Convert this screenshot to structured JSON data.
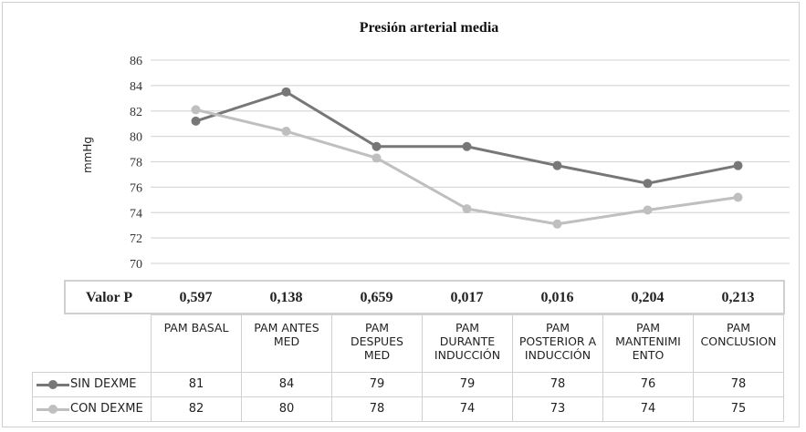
{
  "chart_data": {
    "type": "line",
    "title": "Presión arterial media",
    "ylabel": "mmHg",
    "ylim": [
      70,
      86
    ],
    "yticks": [
      70,
      72,
      74,
      76,
      78,
      80,
      82,
      84,
      86
    ],
    "grid": true,
    "categories": [
      "PAM BASAL",
      "PAM ANTES\nMED",
      "PAM\nDESPUES\nMED",
      "PAM\nDURANTE\nINDUCCIÓN",
      "PAM\nPOSTERIOR A\nINDUCCIÓN",
      "PAM\nMANTENIMI\nENTO",
      "PAM\nCONCLUSION"
    ],
    "series": [
      {
        "name": "SIN DEXME",
        "color": "#777777",
        "values": [
          81.2,
          83.5,
          79.2,
          79.2,
          77.7,
          76.3,
          77.7
        ],
        "table_values": [
          "81",
          "84",
          "79",
          "79",
          "78",
          "76",
          "78"
        ]
      },
      {
        "name": "CON DEXME",
        "color": "#bfbfbf",
        "values": [
          82.1,
          80.4,
          78.3,
          74.3,
          73.1,
          74.2,
          75.2
        ],
        "table_values": [
          "82",
          "80",
          "78",
          "74",
          "73",
          "74",
          "75"
        ]
      }
    ],
    "p_label": "Valor P",
    "p_values": [
      "0,597",
      "0,138",
      "0,659",
      "0,017",
      "0,016",
      "0,204",
      "0,213"
    ],
    "legend": "bottom-table"
  }
}
